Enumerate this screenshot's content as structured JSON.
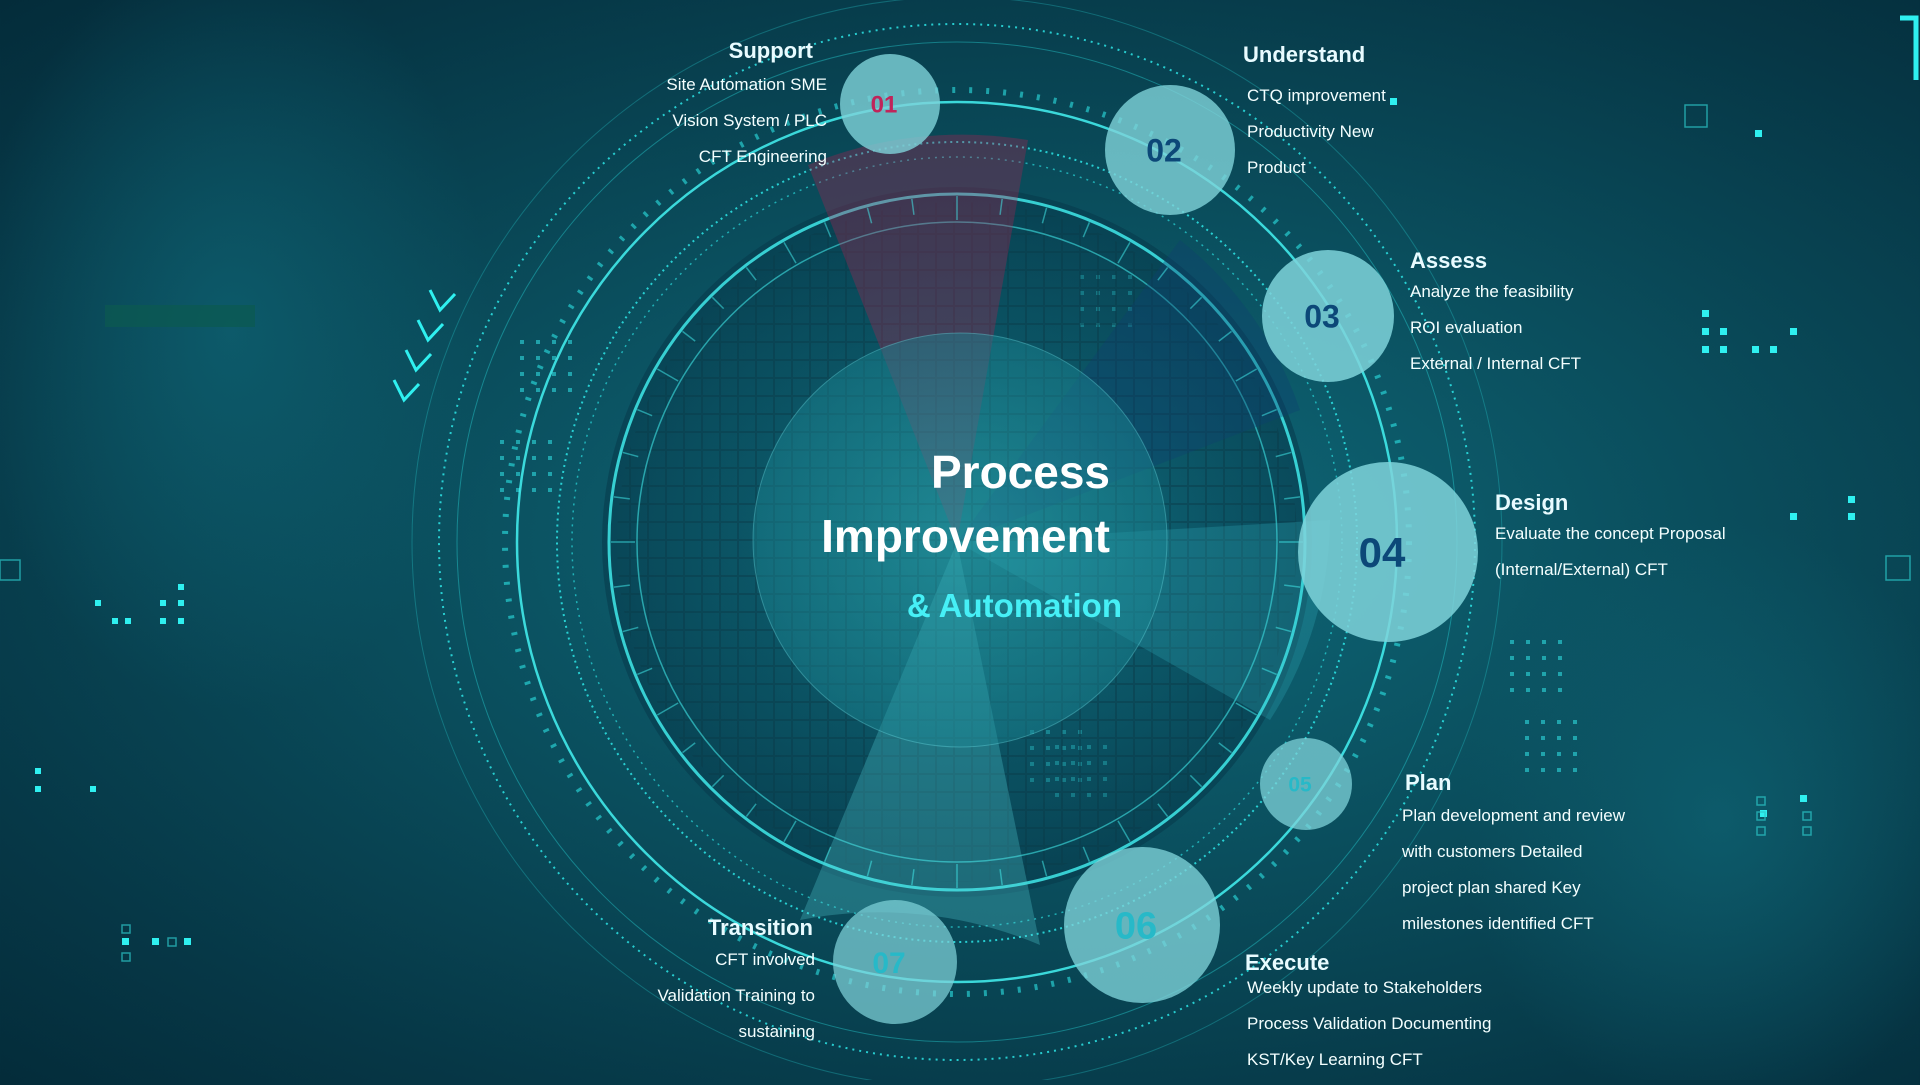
{
  "title": {
    "line1": "Process",
    "line2": "Improvement",
    "subtitle": "& Automation"
  },
  "colors": {
    "background": "#0a4d5c",
    "accent": "#22e0e8",
    "badge_fill": "#7fd3da",
    "red_wedge": "#b3204f"
  },
  "steps": [
    {
      "number": "01",
      "title": "Support",
      "lines": [
        "Site Automation SME",
        "Vision System / PLC",
        "CFT Engineering"
      ]
    },
    {
      "number": "02",
      "title": "Understand",
      "lines": [
        "CTQ improvement",
        "Productivity New",
        "Product"
      ]
    },
    {
      "number": "03",
      "title": "Assess",
      "lines": [
        "Analyze the feasibility",
        "ROI evaluation",
        "External / Internal CFT"
      ]
    },
    {
      "number": "04",
      "title": "Design",
      "lines": [
        "Evaluate the concept Proposal",
        "(Internal/External) CFT"
      ]
    },
    {
      "number": "05",
      "title": "Plan",
      "lines": [
        "Plan development and review",
        "with customers Detailed",
        "project plan shared Key",
        "milestones identified CFT"
      ]
    },
    {
      "number": "06",
      "title": "Execute",
      "lines": [
        "Weekly update to Stakeholders",
        "Process Validation Documenting",
        "KST/Key Learning CFT"
      ]
    },
    {
      "number": "07",
      "title": "Transition",
      "lines": [
        "CFT involved",
        "Validation Training to",
        "sustaining"
      ]
    }
  ]
}
